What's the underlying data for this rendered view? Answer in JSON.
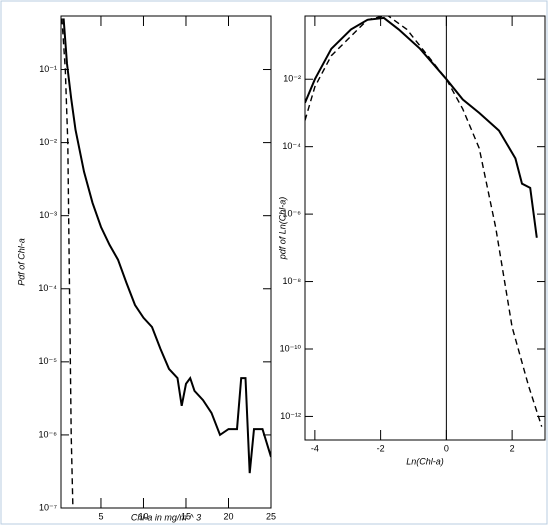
{
  "chart_data": [
    {
      "type": "line",
      "log_y": true,
      "y_label": "Pdf of  Chl-a",
      "x_label": "Chl-a in mg/m ^ 3",
      "xlim": [
        0.3,
        25
      ],
      "xticks": [
        5,
        10,
        15,
        20,
        25
      ],
      "ylim": [
        1e-07,
        0.54
      ],
      "yticks": [
        {
          "value": 1e-07,
          "label": "10⁻⁷"
        },
        {
          "value": 1e-06,
          "label": "10⁻⁶"
        },
        {
          "value": 1e-05,
          "label": "10⁻⁵"
        },
        {
          "value": 0.0001,
          "label": "10⁻⁴"
        },
        {
          "value": 0.001,
          "label": "10⁻³"
        },
        {
          "value": 0.01,
          "label": "10⁻²"
        },
        {
          "value": 0.1,
          "label": "10⁻¹"
        }
      ],
      "series": [
        {
          "color": "#000000",
          "style": "solid",
          "x": [
            0.6,
            1,
            1.5,
            2,
            3,
            4,
            5,
            6,
            7,
            8,
            9,
            10,
            11,
            12,
            13,
            14,
            14.5,
            15,
            15.5,
            16,
            17,
            18,
            19,
            20,
            21,
            21.5,
            22,
            22.5,
            23,
            24,
            25
          ],
          "values": [
            0.5,
            0.12,
            0.04,
            0.015,
            0.004,
            0.0015,
            0.0007,
            0.0004,
            0.00025,
            0.00012,
            6e-05,
            4e-05,
            3e-05,
            1.5e-05,
            8e-06,
            6e-06,
            2.5e-06,
            5e-06,
            6e-06,
            4e-06,
            3e-06,
            2e-06,
            1e-06,
            1.2e-06,
            1.2e-06,
            6e-06,
            6e-06,
            3e-07,
            1.2e-06,
            1.2e-06,
            5e-07
          ]
        },
        {
          "color": "#000000",
          "style": "dashed",
          "x": [
            0.4,
            0.8,
            1.1,
            1.3,
            1.5,
            1.7
          ],
          "values": [
            0.5,
            0.1,
            0.01,
            0.0001,
            1e-06,
            1e-07
          ]
        }
      ]
    },
    {
      "type": "line",
      "log_y": true,
      "y_label": "pdf of Ln(Chl-a)",
      "x_label": "Ln(Chl-a)",
      "xlim": [
        -4.3,
        3.0
      ],
      "xticks": [
        -4,
        -2,
        0,
        2
      ],
      "vline": 0,
      "ylim": [
        2e-13,
        0.75
      ],
      "yticks": [
        {
          "value": 1e-12,
          "label": "10⁻¹²"
        },
        {
          "value": 1e-10,
          "label": "10⁻¹⁰"
        },
        {
          "value": 1e-08,
          "label": "10⁻⁸"
        },
        {
          "value": 1e-06,
          "label": "10⁻⁶"
        },
        {
          "value": 0.0001,
          "label": "10⁻⁴"
        },
        {
          "value": 0.01,
          "label": "10⁻²"
        }
      ],
      "series": [
        {
          "color": "#000000",
          "style": "solid",
          "x": [
            -4.3,
            -4,
            -3.5,
            -2.9,
            -2.4,
            -1.9,
            -1.45,
            -0.8,
            0,
            0.5,
            1,
            1.6,
            2.1,
            2.3,
            2.55,
            2.75
          ],
          "values": [
            0.002,
            0.01,
            0.08,
            0.3,
            0.58,
            0.66,
            0.3,
            0.08,
            0.01,
            0.0025,
            0.001,
            0.0003,
            4.5e-05,
            8e-06,
            6e-06,
            2e-07
          ]
        },
        {
          "color": "#000000",
          "style": "dashed",
          "x": [
            -4.3,
            -4,
            -3.5,
            -2.4,
            -1.8,
            -1.2,
            0,
            0.5,
            1,
            1.5,
            2,
            2.5,
            2.9
          ],
          "values": [
            0.0006,
            0.006,
            0.05,
            0.58,
            0.8,
            0.3,
            0.01,
            0.0013,
            9e-05,
            4e-07,
            4.5e-10,
            8e-12,
            5e-13
          ]
        }
      ]
    }
  ]
}
